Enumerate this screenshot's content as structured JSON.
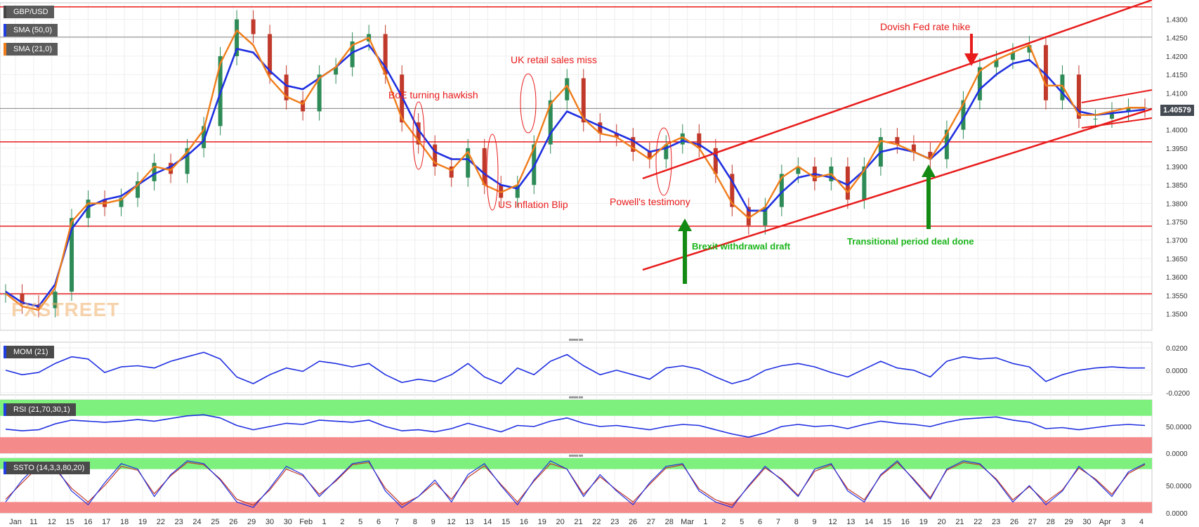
{
  "instrument": "GBP/USD",
  "last_price": "1.40579",
  "watermark": "FXSTREET",
  "indicators": {
    "sma50": "SMA (50,0)",
    "sma21": "SMA (21,0)",
    "mom": "MOM (21)",
    "rsi": "RSI (21,70,30,1)",
    "ssto": "SSTO (14,3,3,80,20)"
  },
  "annotations": {
    "boe": "BoE turning hawkish",
    "uk_retail": "UK retail sales miss",
    "us_inflation": "US Inflation Blip",
    "powell": "Powell's testimony",
    "brexit": "Brexit withdrawal draft",
    "transitional": "Transitional period deal done",
    "dovish_fed": "Dovish Fed rate hike"
  },
  "colors": {
    "price_up": "#2e8b57",
    "price_down": "#c0392b",
    "sma50": "#1f2fe0",
    "sma21": "#f07d1a",
    "levels": "#e81b1b",
    "arrow_green": "#138a13",
    "rsi_over": "#7ef07e",
    "rsi_under": "#f58a8a"
  },
  "chart_data": [
    {
      "type": "line",
      "title": "GBP/USD",
      "ylim": [
        1.3455,
        1.4345
      ],
      "y_ticks": [
        "1.4300",
        "1.4250",
        "1.4200",
        "1.4150",
        "1.4100",
        "1.4050",
        "1.4000",
        "1.3950",
        "1.3900",
        "1.3850",
        "1.3800",
        "1.3750",
        "1.3700",
        "1.3650",
        "1.3600",
        "1.3550",
        "1.3500"
      ],
      "x_tick_labels": [
        "Jan",
        "11",
        "12",
        "15",
        "16",
        "17",
        "18",
        "19",
        "22",
        "23",
        "24",
        "25",
        "26",
        "29",
        "30",
        "30",
        "Feb",
        "1",
        "2",
        "5",
        "6",
        "7",
        "8",
        "9",
        "12",
        "13",
        "14",
        "15",
        "16",
        "19",
        "20",
        "21",
        "22",
        "23",
        "26",
        "27",
        "28",
        "Mar",
        "1",
        "2",
        "5",
        "6",
        "7",
        "8",
        "9",
        "12",
        "13",
        "14",
        "15",
        "16",
        "19",
        "20",
        "21",
        "22",
        "23",
        "26",
        "27",
        "28",
        "29",
        "30",
        "Apr",
        "3",
        "4"
      ],
      "horizontal_levels": [
        1.4334,
        1.4252,
        1.3967,
        1.3738,
        1.3554
      ],
      "price": [
        1.3555,
        1.3525,
        1.3515,
        1.356,
        1.376,
        1.381,
        1.379,
        1.3815,
        1.386,
        1.391,
        1.388,
        1.395,
        1.401,
        1.42,
        1.43,
        1.426,
        1.415,
        1.408,
        1.405,
        1.415,
        1.417,
        1.424,
        1.426,
        1.415,
        1.402,
        1.396,
        1.39,
        1.387,
        1.395,
        1.385,
        1.3815,
        1.385,
        1.396,
        1.408,
        1.414,
        1.402,
        1.399,
        1.398,
        1.394,
        1.392,
        1.396,
        1.399,
        1.395,
        1.388,
        1.379,
        1.374,
        1.379,
        1.388,
        1.39,
        1.386,
        1.39,
        1.381,
        1.39,
        1.398,
        1.396,
        1.394,
        1.392,
        1.4,
        1.408,
        1.417,
        1.419,
        1.421,
        1.423,
        1.408,
        1.415,
        1.403,
        1.403,
        1.405,
        1.406,
        1.4058
      ],
      "sma50": [
        1.356,
        1.353,
        1.352,
        1.358,
        1.373,
        1.379,
        1.381,
        1.382,
        1.385,
        1.388,
        1.39,
        1.393,
        1.397,
        1.41,
        1.422,
        1.421,
        1.416,
        1.412,
        1.411,
        1.414,
        1.417,
        1.421,
        1.423,
        1.417,
        1.409,
        1.4,
        1.394,
        1.392,
        1.392,
        1.388,
        1.385,
        1.384,
        1.39,
        1.399,
        1.405,
        1.403,
        1.401,
        1.399,
        1.397,
        1.394,
        1.395,
        1.397,
        1.396,
        1.393,
        1.386,
        1.378,
        1.378,
        1.383,
        1.387,
        1.388,
        1.387,
        1.385,
        1.389,
        1.394,
        1.395,
        1.394,
        1.392,
        1.396,
        1.403,
        1.411,
        1.415,
        1.418,
        1.419,
        1.415,
        1.41,
        1.405,
        1.404,
        1.4045,
        1.405,
        1.4055
      ],
      "sma21": [
        1.3555,
        1.352,
        1.351,
        1.357,
        1.375,
        1.38,
        1.38,
        1.381,
        1.385,
        1.39,
        1.389,
        1.394,
        1.4,
        1.418,
        1.427,
        1.423,
        1.414,
        1.409,
        1.407,
        1.414,
        1.417,
        1.423,
        1.425,
        1.415,
        1.403,
        1.397,
        1.391,
        1.389,
        1.394,
        1.385,
        1.383,
        1.385,
        1.395,
        1.407,
        1.412,
        1.403,
        1.399,
        1.398,
        1.395,
        1.392,
        1.396,
        1.398,
        1.395,
        1.388,
        1.38,
        1.376,
        1.379,
        1.387,
        1.39,
        1.387,
        1.388,
        1.383,
        1.389,
        1.397,
        1.396,
        1.394,
        1.392,
        1.399,
        1.407,
        1.416,
        1.419,
        1.421,
        1.423,
        1.412,
        1.412,
        1.404,
        1.404,
        1.405,
        1.406,
        1.406
      ]
    },
    {
      "type": "line",
      "title": "MOM (21)",
      "ylim": [
        -0.022,
        0.025
      ],
      "y_ticks": [
        "0.0200",
        "0.0000",
        "-0.0200"
      ],
      "values": [
        0.0,
        -0.004,
        -0.002,
        0.006,
        0.012,
        0.01,
        -0.002,
        0.003,
        0.004,
        0.002,
        0.008,
        0.012,
        0.016,
        0.01,
        -0.006,
        -0.012,
        -0.004,
        0.002,
        -0.001,
        0.008,
        0.006,
        0.003,
        0.006,
        -0.004,
        -0.011,
        -0.008,
        -0.01,
        -0.004,
        0.006,
        -0.006,
        -0.012,
        0.002,
        -0.004,
        0.008,
        0.014,
        0.004,
        -0.004,
        0.0,
        -0.004,
        -0.008,
        0.002,
        0.004,
        0.001,
        -0.006,
        -0.012,
        -0.008,
        0.0,
        0.004,
        0.006,
        0.003,
        -0.002,
        -0.006,
        0.001,
        0.008,
        0.002,
        0.0,
        -0.006,
        0.008,
        0.012,
        0.01,
        0.011,
        0.006,
        0.003,
        -0.01,
        -0.004,
        0.0,
        0.002,
        0.003,
        0.002,
        0.002
      ]
    },
    {
      "type": "line",
      "title": "RSI (21,70,30,1)",
      "ylim": [
        0,
        100
      ],
      "y_ticks": [
        "50.0000",
        "0.0000"
      ],
      "overbought": 70,
      "oversold": 30,
      "values": [
        45,
        42,
        44,
        55,
        62,
        60,
        58,
        60,
        63,
        60,
        65,
        70,
        72,
        66,
        52,
        44,
        50,
        56,
        54,
        62,
        60,
        58,
        62,
        50,
        42,
        44,
        40,
        46,
        56,
        48,
        40,
        52,
        50,
        60,
        66,
        56,
        50,
        52,
        48,
        44,
        50,
        54,
        52,
        44,
        36,
        30,
        38,
        50,
        54,
        50,
        52,
        46,
        54,
        60,
        56,
        54,
        50,
        58,
        64,
        66,
        68,
        62,
        58,
        46,
        48,
        44,
        48,
        52,
        54,
        52
      ]
    },
    {
      "type": "line",
      "title": "SSTO (14,3,3,80,20)",
      "ylim": [
        0,
        100
      ],
      "y_ticks": [
        "50.0000",
        "0.0000"
      ],
      "overbought": 80,
      "oversold": 20,
      "k_values": [
        20,
        60,
        90,
        85,
        40,
        15,
        55,
        90,
        80,
        30,
        70,
        95,
        90,
        60,
        20,
        10,
        45,
        85,
        70,
        30,
        60,
        90,
        95,
        40,
        10,
        30,
        60,
        20,
        70,
        90,
        50,
        15,
        60,
        95,
        80,
        30,
        70,
        40,
        15,
        55,
        85,
        90,
        40,
        20,
        10,
        50,
        85,
        60,
        30,
        80,
        90,
        40,
        20,
        70,
        95,
        60,
        25,
        80,
        95,
        90,
        60,
        20,
        50,
        15,
        40,
        85,
        60,
        30,
        75,
        90
      ],
      "d_values": [
        25,
        55,
        85,
        80,
        45,
        20,
        50,
        85,
        78,
        35,
        68,
        92,
        88,
        62,
        25,
        14,
        42,
        80,
        68,
        34,
        58,
        88,
        92,
        45,
        15,
        30,
        55,
        25,
        65,
        86,
        52,
        20,
        58,
        90,
        80,
        34,
        66,
        42,
        20,
        52,
        82,
        88,
        44,
        24,
        14,
        48,
        82,
        62,
        32,
        76,
        88,
        44,
        24,
        68,
        92,
        62,
        28,
        78,
        92,
        88,
        62,
        24,
        48,
        20,
        42,
        82,
        62,
        34,
        72,
        88
      ]
    }
  ]
}
